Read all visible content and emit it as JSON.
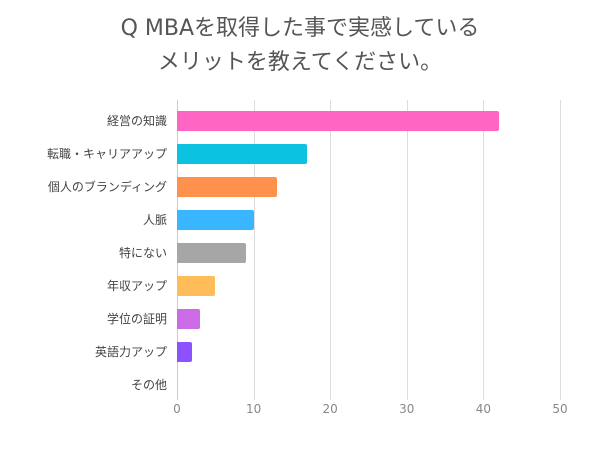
{
  "title": {
    "line1": "Q MBAを取得した事で実感している",
    "line2": "メリットを教えてください。"
  },
  "chart_data": {
    "type": "bar",
    "orientation": "horizontal",
    "title": "Q MBAを取得した事で実感しているメリットを教えてください。",
    "xlabel": "",
    "ylabel": "",
    "xlim": [
      0,
      50
    ],
    "xticks": [
      "0",
      "10",
      "20",
      "30",
      "40",
      "50"
    ],
    "grid": true,
    "legend": "none",
    "categories": [
      "経営の知識",
      "転職・キャリアアップ",
      "個人のブランディング",
      "人脈",
      "特にない",
      "年収アップ",
      "学位の証明",
      "英語力アップ",
      "その他"
    ],
    "values": [
      42,
      17,
      13,
      10,
      9,
      5,
      3,
      2,
      0
    ],
    "colors": [
      "#ff66c4",
      "#0bc2e0",
      "#ff914d",
      "#38b6ff",
      "#a6a6a6",
      "#ffbd59",
      "#cb6ce6",
      "#8c52ff",
      "#cccccc"
    ]
  }
}
